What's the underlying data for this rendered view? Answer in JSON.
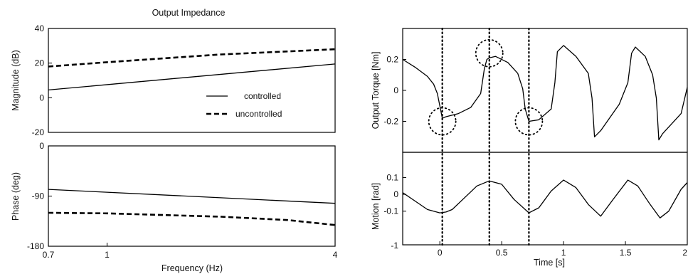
{
  "chart_data": [
    {
      "type": "line",
      "title": "Output Impedance",
      "xlabel": "Frequency  (Hz)",
      "x_scale": "log",
      "xlim": [
        0.7,
        4
      ],
      "xticks": [
        0.7,
        1,
        4
      ],
      "xtick_labels": [
        "0.7",
        "1",
        "4"
      ],
      "panels": [
        {
          "ylabel": "Magnitude (dB)",
          "ylim": [
            -20,
            40
          ],
          "yticks": [
            40,
            20,
            0,
            -20
          ],
          "ytick_labels": [
            "40",
            "20",
            "0",
            "-20"
          ],
          "legend": {
            "location": "lower-right",
            "entries": [
              "controlled",
              "uncontrolled"
            ]
          },
          "series": [
            {
              "name": "controlled",
              "style": "solid",
              "x": [
                0.7,
                4
              ],
              "y": [
                4.5,
                19.5
              ]
            },
            {
              "name": "uncontrolled",
              "style": "dashed",
              "x": [
                0.7,
                1,
                2,
                4
              ],
              "y": [
                18,
                20.5,
                25,
                28
              ]
            }
          ]
        },
        {
          "ylabel": "Phase (deg)",
          "ylim": [
            -180,
            0
          ],
          "yticks": [
            0,
            -90,
            -180
          ],
          "ytick_labels": [
            "0",
            "-90",
            "-180"
          ],
          "series": [
            {
              "name": "controlled",
              "style": "solid",
              "x": [
                0.7,
                4
              ],
              "y": [
                -78,
                -103
              ]
            },
            {
              "name": "uncontrolled",
              "style": "dashed",
              "x": [
                0.7,
                1,
                2,
                3,
                4
              ],
              "y": [
                -120,
                -121,
                -127,
                -133,
                -142
              ]
            }
          ]
        }
      ]
    },
    {
      "type": "line",
      "xlabel": "Time [s]",
      "xlim": [
        -0.3,
        2
      ],
      "xticks": [
        0,
        0.5,
        1,
        1.5,
        2
      ],
      "xtick_labels": [
        "0",
        "0.5",
        "1",
        "1.5",
        "2"
      ],
      "vertical_dotted_lines_x": [
        0.02,
        0.4,
        0.72
      ],
      "panels": [
        {
          "ylabel": "Output Torque [Nm]",
          "ylim": [
            -0.4,
            0.4
          ],
          "yticks": [
            0.2,
            0,
            -0.2
          ],
          "ytick_labels": [
            "0.2",
            "0",
            "-0.2"
          ],
          "highlight_circles": [
            {
              "x": 0.02,
              "y": -0.2
            },
            {
              "x": 0.4,
              "y": 0.24
            },
            {
              "x": 0.72,
              "y": -0.2
            }
          ],
          "series": [
            {
              "style": "solid",
              "x": [
                -0.3,
                -0.2,
                -0.1,
                -0.05,
                -0.02,
                0.0,
                0.02,
                0.05,
                0.15,
                0.25,
                0.33,
                0.36,
                0.38,
                0.4,
                0.45,
                0.55,
                0.63,
                0.67,
                0.69,
                0.72,
                0.8,
                0.9,
                0.93,
                0.95,
                1.0,
                1.1,
                1.2,
                1.23,
                1.25,
                1.3,
                1.45,
                1.52,
                1.55,
                1.58,
                1.66,
                1.72,
                1.75,
                1.77,
                1.8,
                1.95,
                2.0
              ],
              "y": [
                0.2,
                0.15,
                0.09,
                0.04,
                -0.02,
                -0.1,
                -0.18,
                -0.17,
                -0.15,
                -0.11,
                -0.02,
                0.14,
                0.2,
                0.21,
                0.22,
                0.18,
                0.11,
                0.01,
                -0.12,
                -0.2,
                -0.19,
                -0.12,
                0.05,
                0.25,
                0.29,
                0.22,
                0.11,
                -0.05,
                -0.3,
                -0.26,
                -0.09,
                0.05,
                0.24,
                0.28,
                0.22,
                0.1,
                -0.05,
                -0.32,
                -0.28,
                -0.15,
                0.02
              ]
            }
          ]
        },
        {
          "ylabel": "Motion [rad]",
          "ylim": [
            -0.3,
            0.25
          ],
          "yticks": [
            0.1,
            0,
            -0.1
          ],
          "ytick_labels": [
            "0.1",
            "0",
            "-0.1"
          ],
          "extra_tick_labels": [
            "-1"
          ],
          "series": [
            {
              "style": "solid",
              "x": [
                -0.3,
                -0.2,
                -0.1,
                0.0,
                0.05,
                0.1,
                0.2,
                0.3,
                0.4,
                0.5,
                0.6,
                0.72,
                0.8,
                0.9,
                1.0,
                1.1,
                1.2,
                1.3,
                1.4,
                1.52,
                1.6,
                1.7,
                1.78,
                1.85,
                1.95,
                2.0
              ],
              "y": [
                0.01,
                -0.04,
                -0.09,
                -0.11,
                -0.105,
                -0.09,
                -0.02,
                0.05,
                0.08,
                0.06,
                -0.03,
                -0.11,
                -0.08,
                0.02,
                0.085,
                0.04,
                -0.06,
                -0.13,
                -0.03,
                0.085,
                0.05,
                -0.06,
                -0.14,
                -0.1,
                0.03,
                0.07
              ]
            }
          ]
        }
      ]
    }
  ]
}
